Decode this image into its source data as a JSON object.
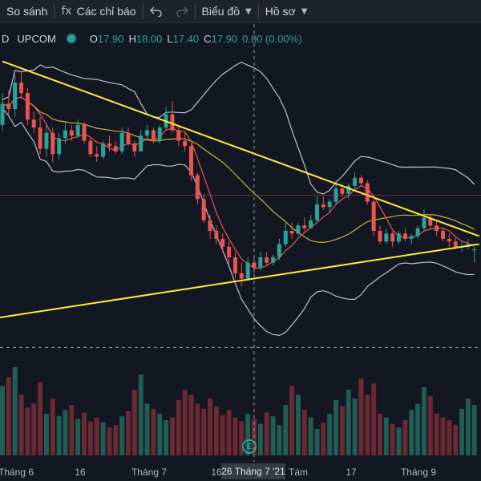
{
  "toolbar": {
    "compare_label": "So sánh",
    "indicators_icon": "fx",
    "indicators_label": "Các chỉ báo",
    "undo_icon": "undo-icon",
    "chart_type_label": "Biểu đồ",
    "profile_label": "Hồ sơ"
  },
  "legend": {
    "symbol_fragment": "D",
    "exchange": "UPCOM",
    "o_label": "O",
    "o_value": "17.90",
    "h_label": "H",
    "h_value": "18.00",
    "l_label": "L",
    "l_value": "17.40",
    "c_label": "C",
    "c_value": "17.90",
    "change": "0.00 (0.00%)"
  },
  "time_axis": {
    "labels": [
      "Tháng 6",
      "16",
      "Tháng 7",
      "16",
      "Tám",
      "17",
      "Tháng 9"
    ],
    "crosshair_label": "26 Tháng 7 '21"
  },
  "event_marker": "E",
  "colors": {
    "up": "#26a69a",
    "down": "#ef5350",
    "trendline": "#ffeb3b",
    "bollinger": "#d1d4dc",
    "ma_short": "#ef5350",
    "ma_long": "#c9b13b",
    "background": "#131722"
  },
  "chart_data": {
    "type": "candlestick",
    "candles": [
      [
        22.6,
        23.8,
        22.4,
        23.4
      ],
      [
        23.4,
        23.9,
        23.0,
        23.2
      ],
      [
        23.2,
        24.5,
        22.9,
        24.2
      ],
      [
        24.2,
        24.6,
        23.6,
        23.8
      ],
      [
        23.8,
        24.0,
        22.6,
        22.8
      ],
      [
        22.8,
        23.1,
        22.3,
        22.5
      ],
      [
        22.5,
        22.9,
        21.5,
        21.7
      ],
      [
        21.7,
        22.6,
        21.4,
        22.3
      ],
      [
        22.3,
        22.5,
        21.2,
        21.5
      ],
      [
        21.5,
        22.3,
        21.3,
        22.1
      ],
      [
        22.1,
        22.7,
        21.9,
        22.4
      ],
      [
        22.4,
        22.6,
        22.0,
        22.2
      ],
      [
        22.2,
        22.8,
        22.1,
        22.6
      ],
      [
        22.6,
        22.7,
        21.9,
        22.0
      ],
      [
        22.0,
        22.1,
        21.4,
        21.5
      ],
      [
        21.5,
        21.8,
        21.2,
        21.4
      ],
      [
        21.4,
        22.0,
        21.3,
        21.9
      ],
      [
        21.9,
        22.2,
        21.6,
        21.8
      ],
      [
        21.8,
        22.0,
        21.5,
        21.6
      ],
      [
        21.6,
        22.5,
        21.5,
        22.3
      ],
      [
        22.3,
        22.5,
        21.8,
        21.9
      ],
      [
        21.9,
        22.0,
        21.4,
        21.6
      ],
      [
        21.6,
        22.4,
        21.6,
        22.2
      ],
      [
        22.2,
        22.6,
        22.0,
        22.4
      ],
      [
        22.4,
        22.5,
        21.9,
        22.0
      ],
      [
        22.0,
        22.6,
        21.9,
        22.5
      ],
      [
        22.5,
        23.3,
        22.4,
        23.0
      ],
      [
        23.0,
        23.5,
        22.3,
        22.4
      ],
      [
        22.4,
        22.6,
        21.8,
        22.0
      ],
      [
        22.0,
        22.3,
        21.6,
        21.8
      ],
      [
        21.8,
        21.9,
        20.5,
        20.7
      ],
      [
        20.7,
        20.8,
        19.6,
        19.8
      ],
      [
        19.8,
        20.0,
        18.9,
        19.0
      ],
      [
        19.0,
        19.2,
        18.3,
        18.6
      ],
      [
        18.6,
        18.8,
        18.1,
        18.3
      ],
      [
        18.3,
        18.5,
        17.8,
        18.0
      ],
      [
        18.0,
        18.2,
        17.3,
        17.6
      ],
      [
        17.6,
        17.8,
        16.8,
        17.0
      ],
      [
        17.0,
        17.4,
        16.5,
        16.8
      ],
      [
        16.8,
        17.6,
        16.7,
        17.4
      ],
      [
        17.4,
        17.6,
        17.0,
        17.2
      ],
      [
        17.2,
        17.8,
        17.1,
        17.6
      ],
      [
        17.6,
        17.8,
        17.3,
        17.4
      ],
      [
        17.4,
        17.7,
        17.3,
        17.6
      ],
      [
        17.6,
        18.3,
        17.5,
        18.1
      ],
      [
        18.1,
        18.9,
        18.0,
        18.6
      ],
      [
        18.6,
        18.9,
        18.3,
        18.5
      ],
      [
        18.5,
        18.9,
        18.4,
        18.8
      ],
      [
        18.8,
        19.1,
        18.6,
        18.7
      ],
      [
        18.7,
        19.2,
        18.7,
        19.0
      ],
      [
        19.0,
        19.9,
        18.9,
        19.6
      ],
      [
        19.6,
        19.9,
        19.4,
        19.5
      ],
      [
        19.5,
        19.8,
        19.3,
        19.7
      ],
      [
        19.7,
        20.5,
        19.6,
        20.2
      ],
      [
        20.2,
        20.4,
        19.9,
        20.0
      ],
      [
        20.0,
        20.4,
        19.8,
        20.3
      ],
      [
        20.3,
        20.8,
        20.2,
        20.6
      ],
      [
        20.6,
        20.7,
        20.3,
        20.4
      ],
      [
        20.4,
        20.5,
        19.6,
        19.7
      ],
      [
        19.7,
        19.8,
        18.4,
        18.6
      ],
      [
        18.6,
        18.8,
        18.1,
        18.2
      ],
      [
        18.2,
        18.7,
        18.1,
        18.5
      ],
      [
        18.5,
        18.6,
        18.0,
        18.2
      ],
      [
        18.2,
        18.6,
        18.1,
        18.5
      ],
      [
        18.5,
        18.7,
        18.2,
        18.3
      ],
      [
        18.3,
        18.5,
        18.1,
        18.4
      ],
      [
        18.4,
        18.8,
        18.3,
        18.7
      ],
      [
        18.7,
        19.4,
        18.6,
        19.1
      ],
      [
        19.1,
        19.2,
        18.7,
        18.8
      ],
      [
        18.8,
        19.0,
        18.4,
        18.6
      ],
      [
        18.6,
        18.7,
        18.2,
        18.3
      ],
      [
        18.3,
        18.5,
        18.0,
        18.2
      ],
      [
        18.2,
        18.4,
        17.9,
        18.0
      ],
      [
        18.0,
        18.2,
        17.8,
        18.0
      ],
      [
        18.0,
        18.3,
        17.9,
        18.1
      ],
      [
        17.9,
        18.0,
        17.4,
        17.9
      ]
    ],
    "volumes": [
      55,
      62,
      70,
      48,
      38,
      41,
      58,
      33,
      45,
      31,
      36,
      40,
      29,
      34,
      27,
      30,
      26,
      22,
      24,
      31,
      35,
      52,
      64,
      41,
      37,
      33,
      28,
      30,
      44,
      52,
      48,
      41,
      37,
      45,
      39,
      32,
      36,
      30,
      27,
      33,
      29,
      25,
      34,
      31,
      24,
      40,
      55,
      48,
      36,
      30,
      21,
      26,
      33,
      44,
      39,
      52,
      45,
      61,
      48,
      57,
      33,
      30,
      25,
      22,
      28,
      36,
      41,
      54,
      47,
      33,
      30,
      28,
      24,
      37,
      45,
      40
    ],
    "trendlines": [
      {
        "from": [
          0,
          25.0
        ],
        "to": [
          75,
          18.4
        ]
      },
      {
        "from": [
          -4,
          15.2
        ],
        "to": [
          75,
          18.1
        ]
      }
    ],
    "crosshair": {
      "time_index": 40,
      "price": 14.2
    },
    "horizontal_line": 19.95
  }
}
